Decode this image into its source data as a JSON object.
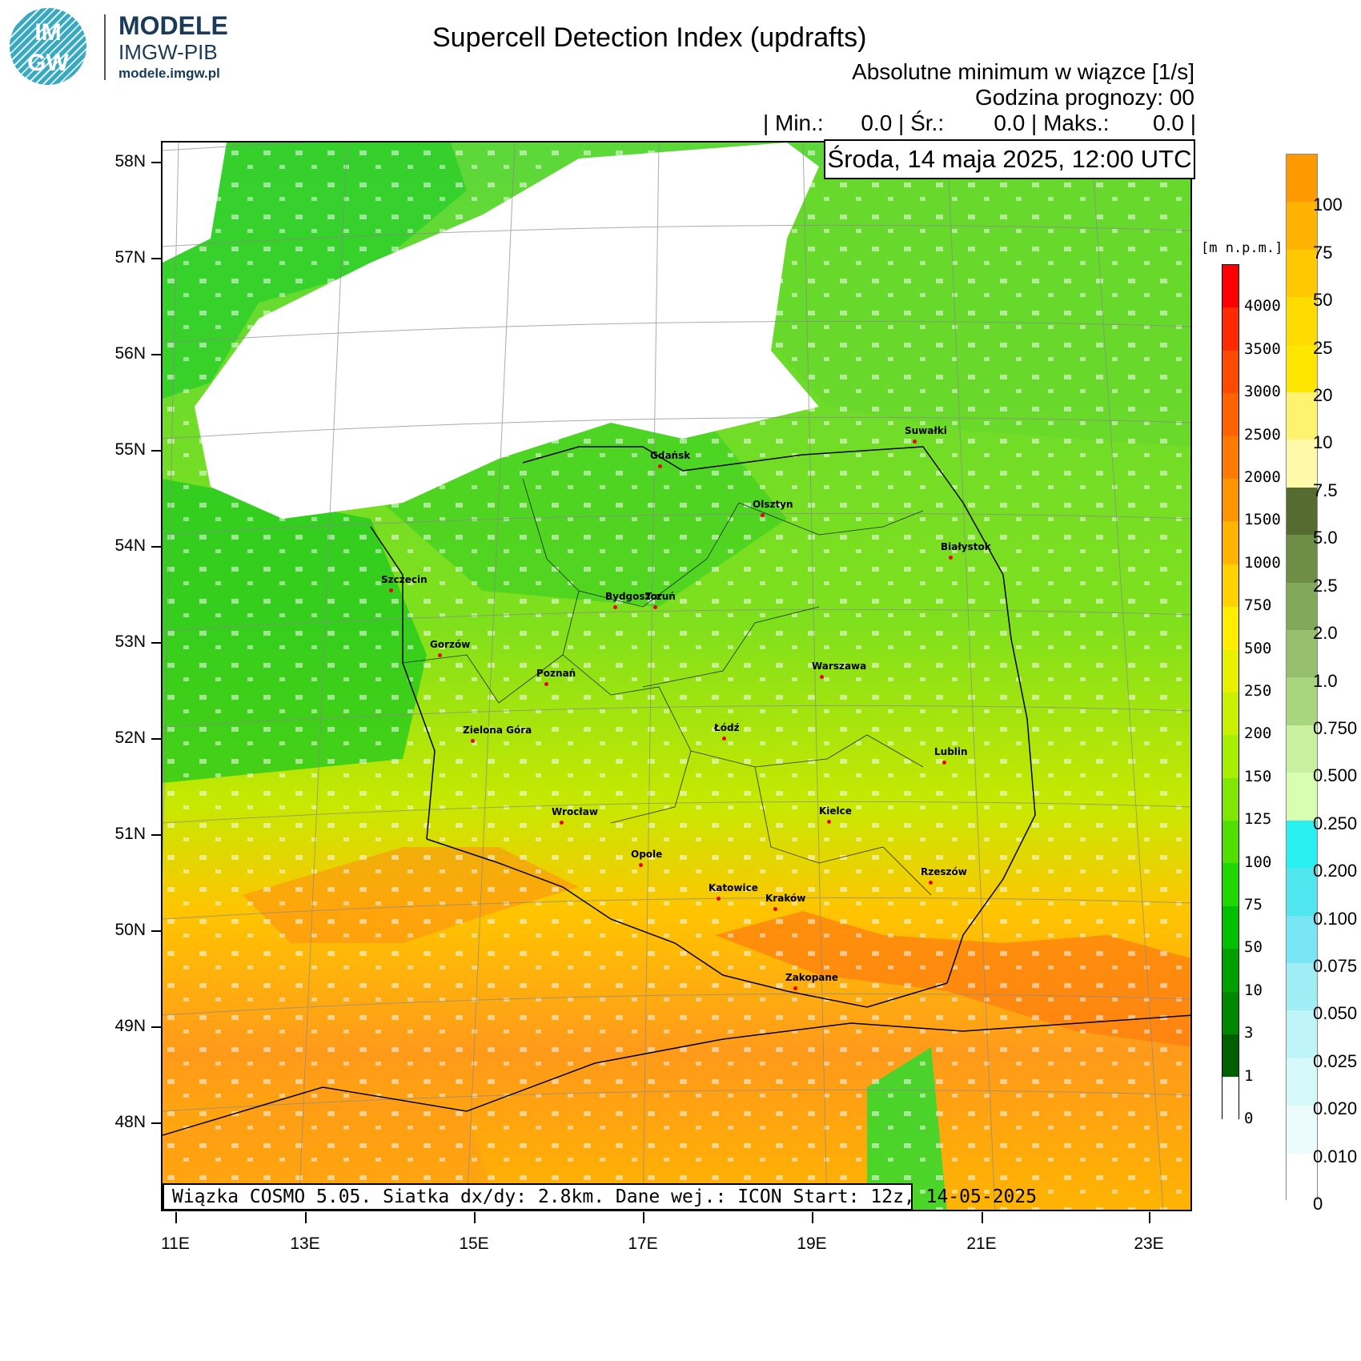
{
  "header": {
    "logo_text_top": "IM",
    "logo_text_bottom": "GW",
    "brand_line1": "MODELE",
    "brand_line2": "IMGW-PIB",
    "brand_url": "modele.imgw.pl",
    "title": "Supercell Detection Index (updrafts)",
    "subtitle1": "Absolutne minimum w wiązce [1/s]",
    "subtitle2": "Godzina prognozy: 00",
    "stats": "| Min.:      0.0 | Śr.:        0.0 | Maks.:       0.0 |",
    "date": "Środa, 14 maja 2025, 12:00 UTC"
  },
  "footer": {
    "text": "Wiązka COSMO 5.05. Siatka dx/dy: 2.8km. Dane wej.: ICON Start: 12z, 14-05-2025"
  },
  "axes": {
    "lat_labels": [
      "58N",
      "57N",
      "56N",
      "55N",
      "54N",
      "53N",
      "52N",
      "51N",
      "50N",
      "49N",
      "48N"
    ],
    "lon_labels": [
      "11E",
      "13E",
      "15E",
      "17E",
      "19E",
      "21E",
      "23E"
    ]
  },
  "cities": [
    {
      "name": "Gdańsk"
    },
    {
      "name": "Olsztyn"
    },
    {
      "name": "Suwałki"
    },
    {
      "name": "Białystok"
    },
    {
      "name": "Szczecin"
    },
    {
      "name": "Bydgoszcz"
    },
    {
      "name": "Toruń"
    },
    {
      "name": "Gorzów"
    },
    {
      "name": "Poznań"
    },
    {
      "name": "Warszawa"
    },
    {
      "name": "Zielona Góra"
    },
    {
      "name": "Łódź"
    },
    {
      "name": "Lublin"
    },
    {
      "name": "Wrocław"
    },
    {
      "name": "Kielce"
    },
    {
      "name": "Opole"
    },
    {
      "name": "Rzeszów"
    },
    {
      "name": "Katowice"
    },
    {
      "name": "Kraków"
    },
    {
      "name": "Zakopane"
    }
  ],
  "elevation_legend": {
    "unit": "[m n.p.m.]",
    "labels": [
      "4000",
      "3500",
      "3000",
      "2500",
      "2000",
      "1500",
      "1000",
      "750",
      "500",
      "250",
      "200",
      "150",
      "125",
      "100",
      "75",
      "50",
      "10",
      "3",
      "1",
      "0"
    ],
    "colors": [
      "#ff0000",
      "#ff2a00",
      "#ff4a00",
      "#ff6400",
      "#ff7a00",
      "#ff9600",
      "#ffb400",
      "#ffd200",
      "#ffee00",
      "#e8f000",
      "#c8f000",
      "#a8ee00",
      "#80e800",
      "#50e000",
      "#20d800",
      "#00c000",
      "#00a000",
      "#008800",
      "#006000",
      "#ffffff"
    ]
  },
  "sdi_legend": {
    "labels": [
      "100",
      "75",
      "50",
      "25",
      "20",
      "10",
      "7.5",
      "5.0",
      "2.5",
      "2.0",
      "1.0",
      "0.750",
      "0.500",
      "0.250",
      "0.200",
      "0.100",
      "0.075",
      "0.050",
      "0.025",
      "0.020",
      "0.010",
      "0"
    ],
    "colors": [
      "#ff9900",
      "#ffb300",
      "#ffc800",
      "#ffdc00",
      "#ffe600",
      "#fff26e",
      "#fffaaa",
      "#556b2f",
      "#6e8e46",
      "#82a85a",
      "#96c06e",
      "#a8d67e",
      "#c8f09e",
      "#d8ffb0",
      "#28f0f0",
      "#50e6f0",
      "#78e6f5",
      "#a0eef5",
      "#bff4f8",
      "#d6fafa",
      "#ecfcfc",
      "#ffffff"
    ]
  }
}
